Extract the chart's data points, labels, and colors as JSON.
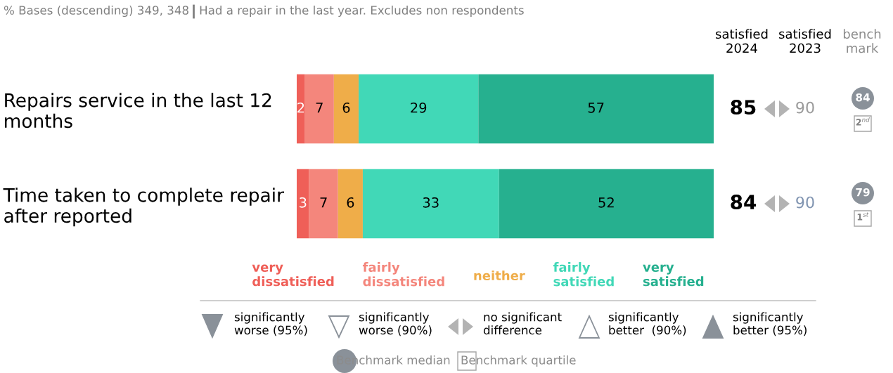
{
  "chart_data": {
    "type": "bar",
    "orientation": "horizontal",
    "stacked": true,
    "data_labels": true,
    "legend": "bottom",
    "title": "% Bases (descending) 349, 348",
    "subtitle": "Had a repair in the last year. Excludes non respondents",
    "categories": [
      "Repairs service in the last 12\nmonths",
      "Time taken to complete repair\nafter reported"
    ],
    "series": [
      {
        "name": "very\ndissatisfied",
        "color": "#ef5f58",
        "values": [
          2,
          3
        ]
      },
      {
        "name": "fairly\ndissatisfied",
        "color": "#f4867c",
        "values": [
          7,
          7
        ]
      },
      {
        "name": "neither",
        "color": "#efad49",
        "values": [
          6,
          6
        ]
      },
      {
        "name": "fairly\nsatisfied",
        "color": "#41d8b7",
        "values": [
          29,
          33
        ]
      },
      {
        "name": "very\nsatisfied",
        "color": "#26b08f",
        "values": [
          57,
          52
        ]
      }
    ],
    "annotations": [
      "satisfied\n2024",
      "satisfied\n2023",
      "bench\nmark",
      "85",
      "90",
      "84",
      "2$^{nd}$",
      "84",
      "90",
      "79",
      "1$^{st}$",
      "significantly\nworse (95%)",
      "significantly\nworse (90%)",
      "no significant\ndifference",
      "significantly\nbetter  (90%)",
      "significantly\nbetter (95%)",
      "Benchmark median",
      "Benchmark quartile"
    ]
  }
}
